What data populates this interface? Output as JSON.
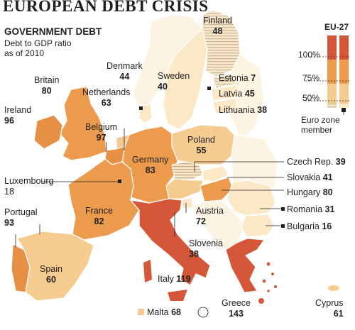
{
  "title": "EUROPEAN DEBT CRISIS",
  "subtitle": "GOVERNMENT DEBT",
  "note_line1": "Debt to GDP ratio",
  "note_line2": "as of 2010",
  "legend": {
    "heading": "EU-27",
    "ticks": [
      "100%",
      "75%",
      "50%"
    ],
    "eurozone_line1": "Euro zone",
    "eurozone_line2": "member",
    "colors": {
      "over100": "#d4573a",
      "75to100": "#ec9a4b",
      "50to75": "#f5cb8f",
      "under50": "#fbe8c6"
    }
  },
  "countries": [
    {
      "name": "Finland",
      "value": "48"
    },
    {
      "name": "Sweden",
      "value": "40"
    },
    {
      "name": "Denmark",
      "value": "44"
    },
    {
      "name": "Estonia",
      "value": "7"
    },
    {
      "name": "Latvia",
      "value": "45"
    },
    {
      "name": "Lithuania",
      "value": "38"
    },
    {
      "name": "Britain",
      "value": "80"
    },
    {
      "name": "Netherlands",
      "value": "63"
    },
    {
      "name": "Ireland",
      "value": "96"
    },
    {
      "name": "Belgium",
      "value": "97"
    },
    {
      "name": "Poland",
      "value": "55"
    },
    {
      "name": "Germany",
      "value": "83"
    },
    {
      "name": "Czech Rep.",
      "value": "39"
    },
    {
      "name": "Luxembourg",
      "value": "18"
    },
    {
      "name": "Slovakia",
      "value": "41"
    },
    {
      "name": "Hungary",
      "value": "80"
    },
    {
      "name": "Portugal",
      "value": "93"
    },
    {
      "name": "France",
      "value": "82"
    },
    {
      "name": "Austria",
      "value": "72"
    },
    {
      "name": "Romania",
      "value": "31"
    },
    {
      "name": "Bulgaria",
      "value": "16"
    },
    {
      "name": "Slovenia",
      "value": "38"
    },
    {
      "name": "Spain",
      "value": "60"
    },
    {
      "name": "Italy",
      "value": "119"
    },
    {
      "name": "Greece",
      "value": "143"
    },
    {
      "name": "Cyprus",
      "value": "61"
    },
    {
      "name": "Malta",
      "value": "68"
    }
  ]
}
